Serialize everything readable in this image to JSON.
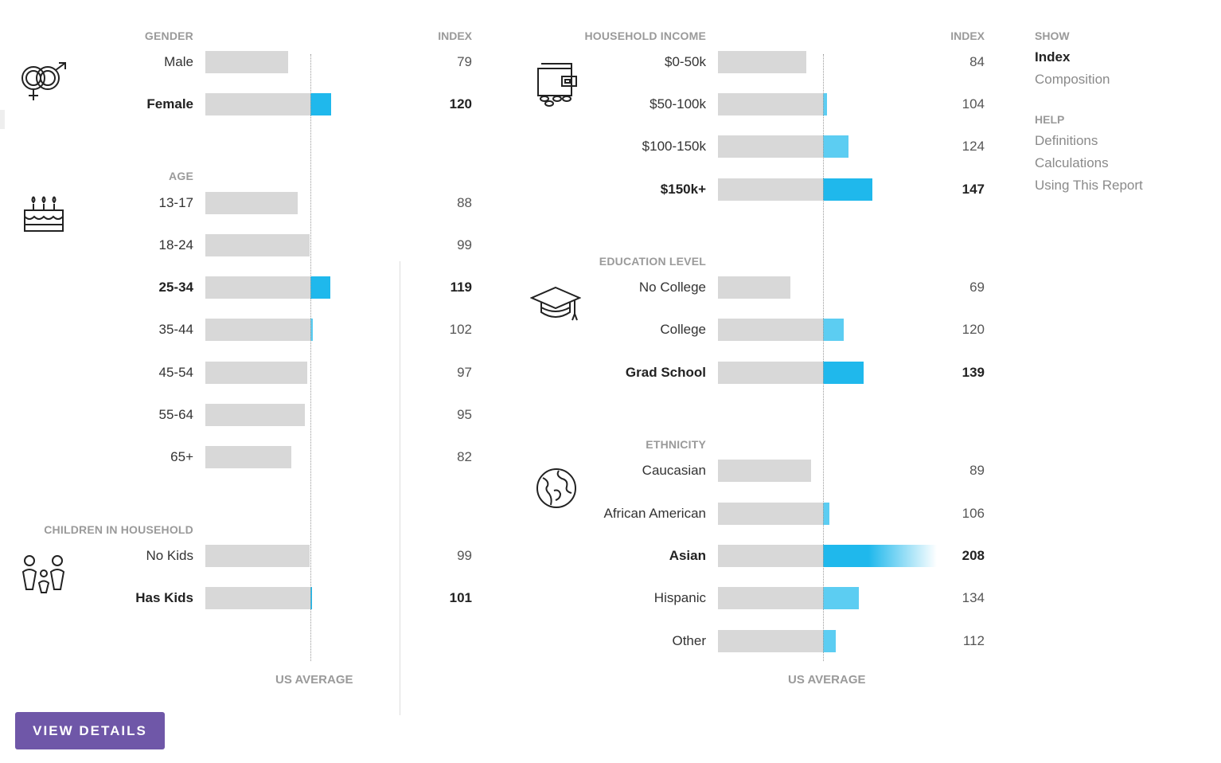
{
  "sections": [
    {
      "id": "gender",
      "title": "GENDER",
      "icon": "gender-icon",
      "rows": [
        {
          "label": "Male",
          "value": 79,
          "bold": false
        },
        {
          "label": "Female",
          "value": 120,
          "bold": true
        }
      ]
    },
    {
      "id": "age",
      "title": "AGE",
      "icon": "birthday-cake-icon",
      "rows": [
        {
          "label": "13-17",
          "value": 88,
          "bold": false
        },
        {
          "label": "18-24",
          "value": 99,
          "bold": false
        },
        {
          "label": "25-34",
          "value": 119,
          "bold": true
        },
        {
          "label": "35-44",
          "value": 102,
          "bold": false
        },
        {
          "label": "45-54",
          "value": 97,
          "bold": false
        },
        {
          "label": "55-64",
          "value": 95,
          "bold": false
        },
        {
          "label": "65+",
          "value": 82,
          "bold": false
        }
      ]
    },
    {
      "id": "children",
      "title": "CHILDREN IN HOUSEHOLD",
      "icon": "family-icon",
      "rows": [
        {
          "label": "No Kids",
          "value": 99,
          "bold": false
        },
        {
          "label": "Has Kids",
          "value": 101,
          "bold": true
        }
      ]
    },
    {
      "id": "income",
      "title": "HOUSEHOLD INCOME",
      "icon": "wallet-icon",
      "rows": [
        {
          "label": "$0-50k",
          "value": 84,
          "bold": false
        },
        {
          "label": "$50-100k",
          "value": 104,
          "bold": false
        },
        {
          "label": "$100-150k",
          "value": 124,
          "bold": false
        },
        {
          "label": "$150k+",
          "value": 147,
          "bold": true
        }
      ]
    },
    {
      "id": "education",
      "title": "EDUCATION LEVEL",
      "icon": "graduation-cap-icon",
      "rows": [
        {
          "label": "No College",
          "value": 69,
          "bold": false
        },
        {
          "label": "College",
          "value": 120,
          "bold": false
        },
        {
          "label": "Grad School",
          "value": 139,
          "bold": true
        }
      ]
    },
    {
      "id": "ethnicity",
      "title": "ETHNICITY",
      "icon": "globe-icon",
      "rows": [
        {
          "label": "Caucasian",
          "value": 89,
          "bold": false
        },
        {
          "label": "African American",
          "value": 106,
          "bold": false
        },
        {
          "label": "Asian",
          "value": 208,
          "bold": true
        },
        {
          "label": "Hispanic",
          "value": 134,
          "bold": false
        },
        {
          "label": "Other",
          "value": 112,
          "bold": false
        }
      ]
    }
  ],
  "index_header": "INDEX",
  "us_average_label": "US AVERAGE",
  "sidebar": {
    "show_title": "SHOW",
    "show_items": [
      {
        "label": "Index",
        "active": true
      },
      {
        "label": "Composition",
        "active": false
      }
    ],
    "help_title": "HELP",
    "help_items": [
      {
        "label": "Definitions"
      },
      {
        "label": "Calculations"
      },
      {
        "label": "Using This Report"
      }
    ]
  },
  "view_details_label": "VIEW DETAILS",
  "colors": {
    "bar_bg": "#d8d8d8",
    "bar_fill": "#1fb8ec",
    "bar_fill_light": "#5ccdf2",
    "button": "#6f57a8"
  }
}
